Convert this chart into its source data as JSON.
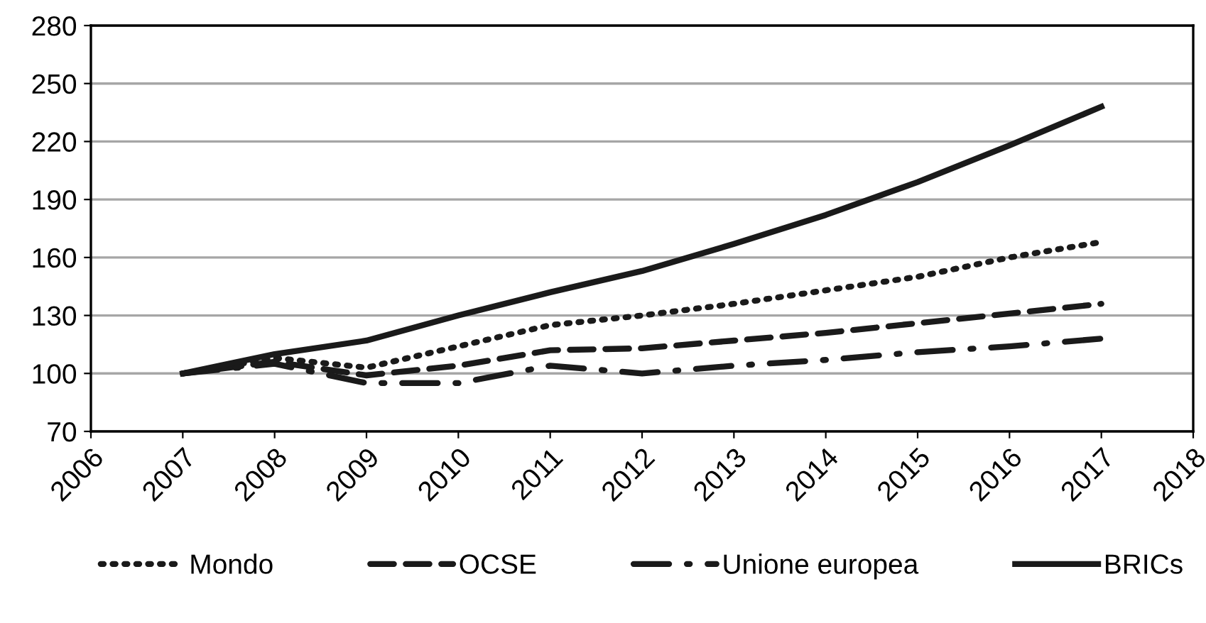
{
  "chart_data": {
    "type": "line",
    "x": [
      2007,
      2008,
      2009,
      2010,
      2011,
      2012,
      2013,
      2014,
      2015,
      2016,
      2017
    ],
    "series": [
      {
        "name": "Mondo",
        "color": "#1a1a1a",
        "line_style": "dotted",
        "values": [
          100,
          108,
          103,
          114,
          125,
          130,
          136,
          143,
          150,
          160,
          168
        ]
      },
      {
        "name": "OCSE",
        "color": "#1a1a1a",
        "line_style": "dashed",
        "values": [
          100,
          106,
          99,
          104,
          112,
          113,
          117,
          121,
          126,
          131,
          136
        ]
      },
      {
        "name": "Unione europea",
        "color": "#1a1a1a",
        "line_style": "dashdot",
        "values": [
          100,
          105,
          95,
          95,
          104,
          100,
          104,
          107,
          111,
          114,
          118
        ]
      },
      {
        "name": "BRICs",
        "color": "#1a1a1a",
        "line_style": "solid",
        "values": [
          100,
          110,
          117,
          130,
          142,
          153,
          167,
          182,
          199,
          218,
          238
        ]
      }
    ],
    "xlim": [
      2006,
      2018
    ],
    "xticks": [
      2006,
      2007,
      2008,
      2009,
      2010,
      2011,
      2012,
      2013,
      2014,
      2015,
      2016,
      2017,
      2018
    ],
    "ylim": [
      70,
      280
    ],
    "yticks": [
      70,
      100,
      130,
      160,
      190,
      220,
      250,
      280
    ],
    "grid": "y",
    "legend": "bottom",
    "marker": "none"
  }
}
